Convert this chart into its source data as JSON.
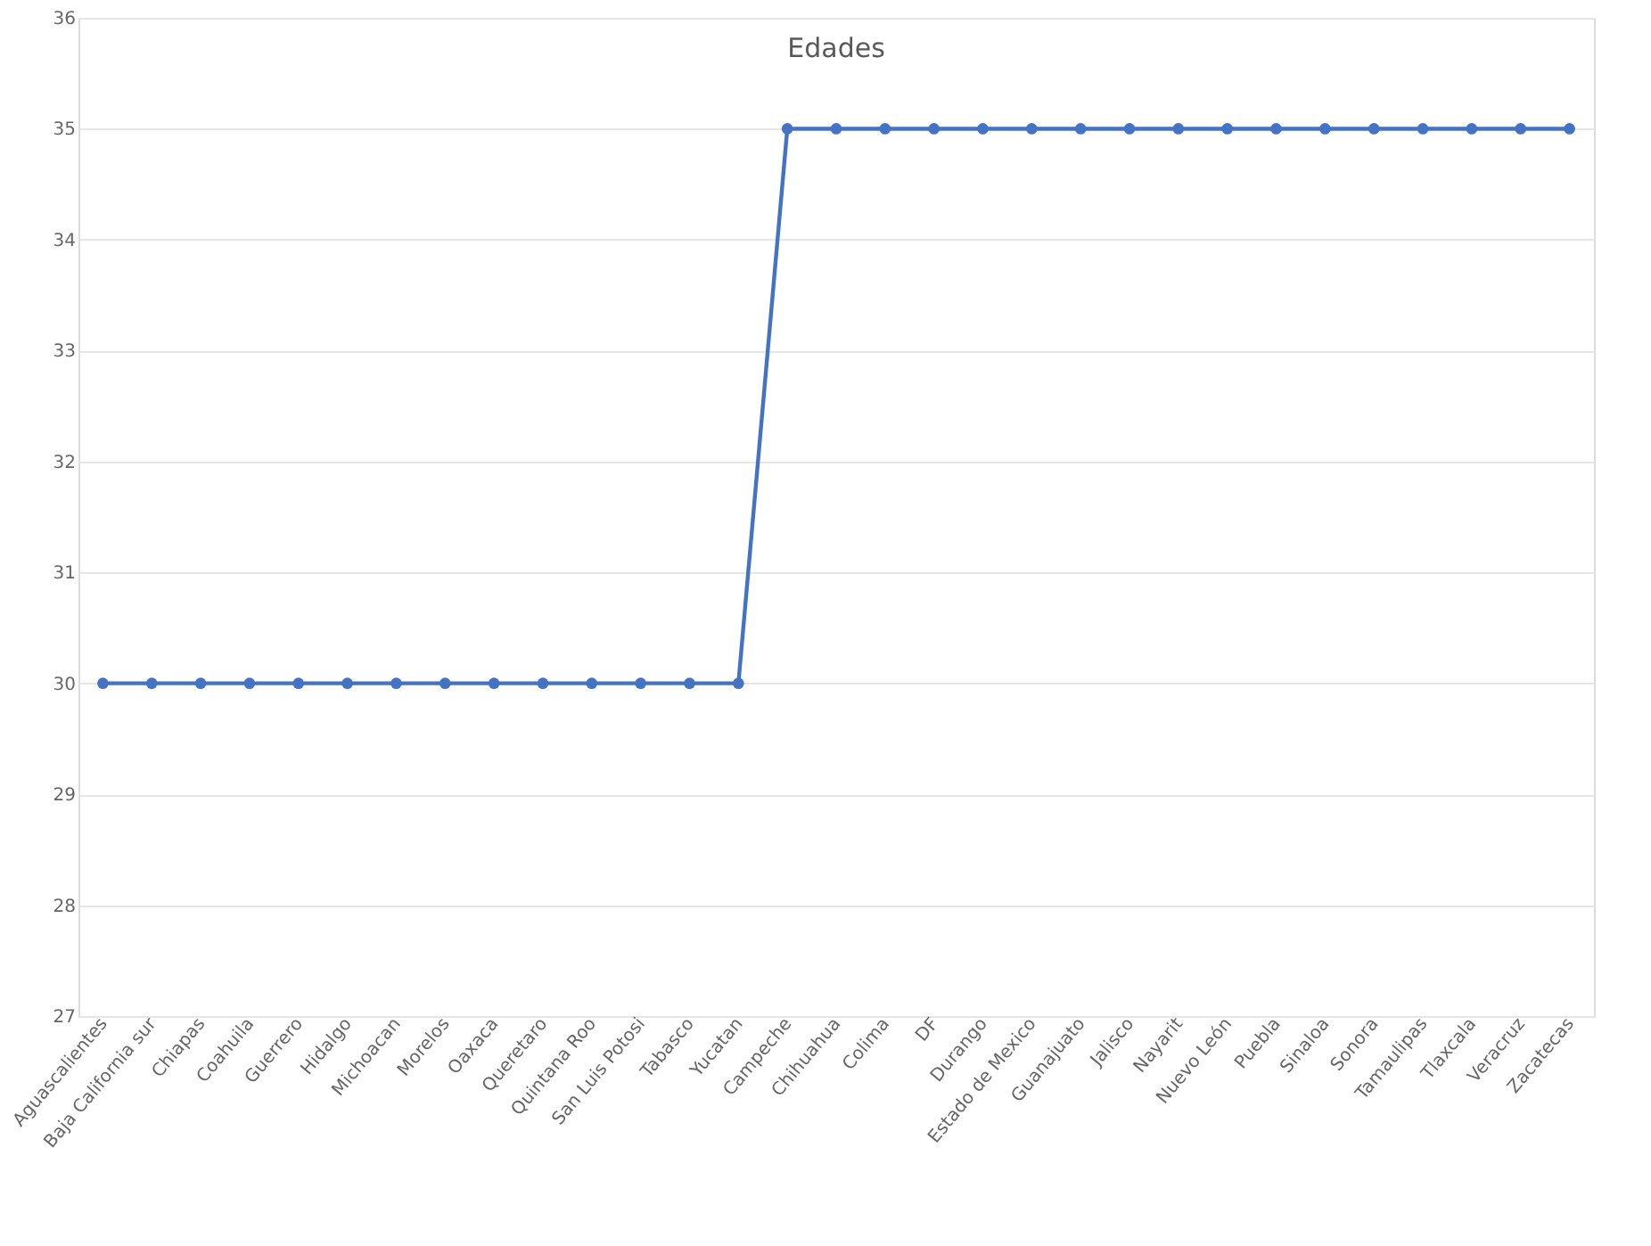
{
  "chart_data": {
    "type": "line",
    "title": "Edades",
    "categories": [
      "Aguascalientes",
      "Baja California sur",
      "Chiapas",
      "Coahuila",
      "Guerrero",
      "Hidalgo",
      "Michoacan",
      "Morelos",
      "Oaxaca",
      "Queretaro",
      "Quintana Roo",
      "San Luis Potosi",
      "Tabasco",
      "Yucatan",
      "Campeche",
      "Chihuahua",
      "Colima",
      "DF",
      "Durango",
      "Estado de Mexico",
      "Guanajuato",
      "Jalisco",
      "Nayarit",
      "Nuevo León",
      "Puebla",
      "Sinaloa",
      "Sonora",
      "Tamaulipas",
      "Tlaxcala",
      "Veracruz",
      "Zacatecas"
    ],
    "series": [
      {
        "color": "#4472c4",
        "values": [
          30,
          30,
          30,
          30,
          30,
          30,
          30,
          30,
          30,
          30,
          30,
          30,
          30,
          30,
          35,
          35,
          35,
          35,
          35,
          35,
          35,
          35,
          35,
          35,
          35,
          35,
          35,
          35,
          35,
          35,
          35
        ]
      }
    ],
    "ylim": [
      27,
      36
    ],
    "yticks": [
      27,
      28,
      29,
      30,
      31,
      32,
      33,
      34,
      35,
      36
    ],
    "grid": "y",
    "marker": "circle",
    "line_style": "solid"
  }
}
